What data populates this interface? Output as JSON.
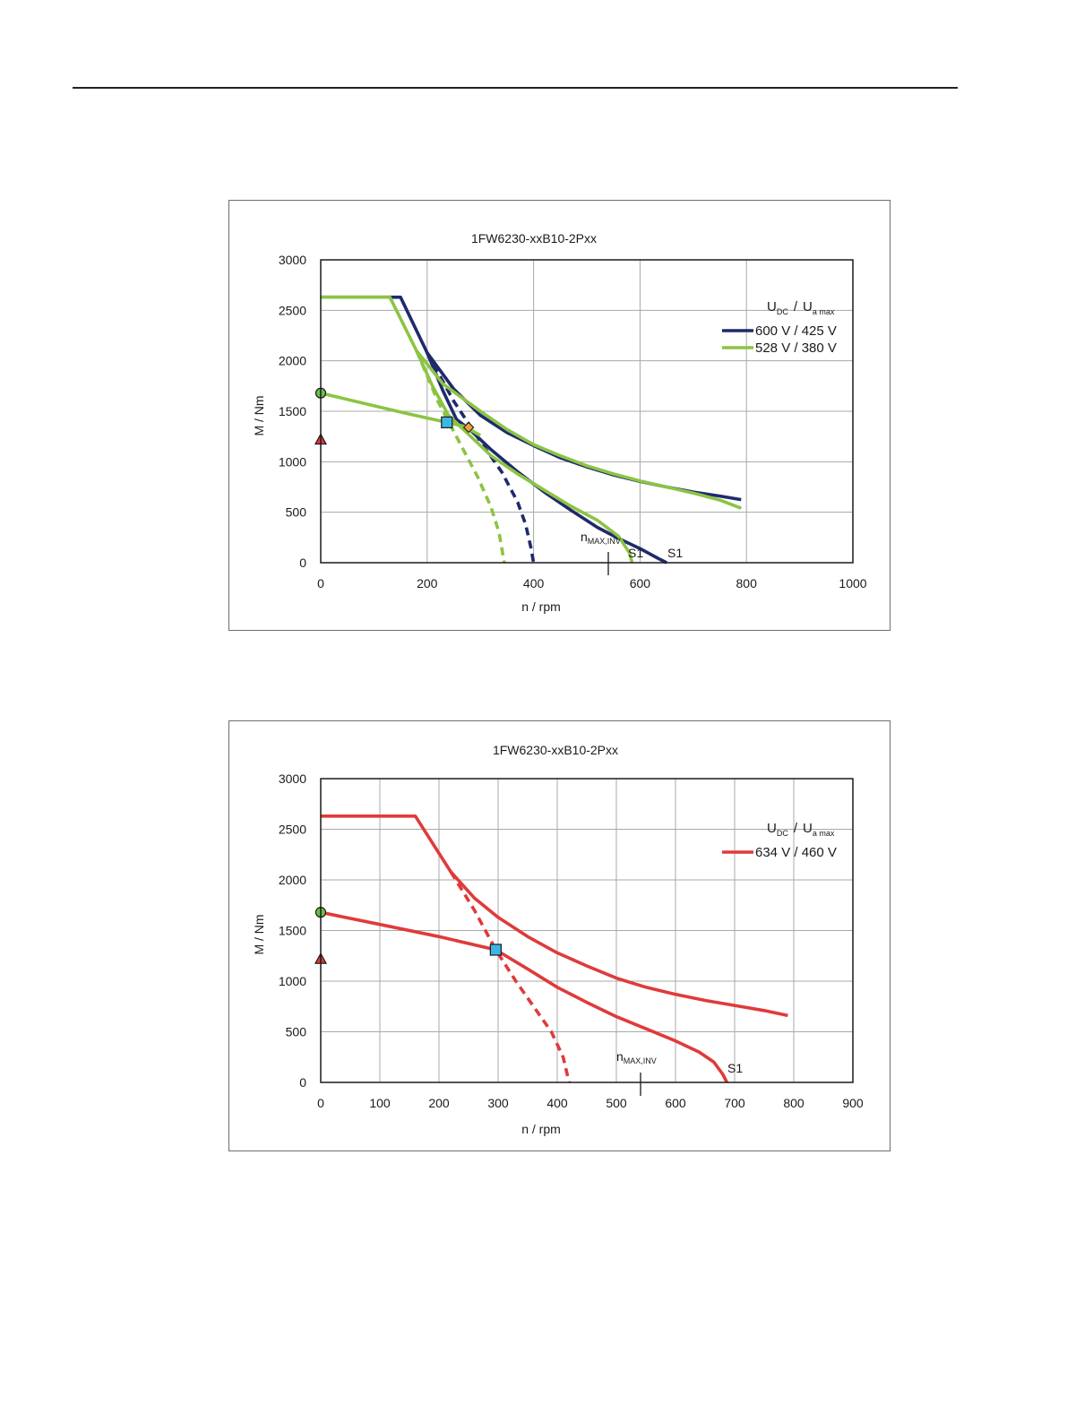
{
  "charts": [
    {
      "title": "1FW6230-xxB10-2Pxx",
      "xlabel": "n / rpm",
      "ylabel": "M / Nm",
      "legend": {
        "header": {
          "u1": "U",
          "u1_sub": "DC",
          "slash": "/",
          "u2": "U",
          "u2_sub": "a max"
        },
        "entries": [
          {
            "label": "600 V / 425 V",
            "color": "#1f2a6b"
          },
          {
            "label": "528 V / 380 V",
            "color": "#8cc443"
          }
        ]
      },
      "annotations": {
        "nmax_main": "n",
        "nmax_sub": "MAX,INV",
        "s1_a": "S1",
        "s1_b": "S1"
      }
    },
    {
      "title": "1FW6230-xxB10-2Pxx",
      "xlabel": "n / rpm",
      "ylabel": "M / Nm",
      "legend": {
        "header": {
          "u1": "U",
          "u1_sub": "DC",
          "slash": "/",
          "u2": "U",
          "u2_sub": "a max"
        },
        "entries": [
          {
            "label": "634 V / 460 V",
            "color": "#e03a3a"
          }
        ]
      },
      "annotations": {
        "nmax_main": "n",
        "nmax_sub": "MAX,INV",
        "s1_a": "S1"
      }
    }
  ],
  "chart_data": [
    {
      "type": "line",
      "title": "1FW6230-xxB10-2Pxx",
      "xlabel": "n / rpm",
      "ylabel": "M / Nm",
      "xlim": [
        0,
        1000
      ],
      "ylim": [
        0,
        3000
      ],
      "xticks": [
        0,
        200,
        400,
        600,
        800,
        1000
      ],
      "yticks": [
        0,
        500,
        1000,
        1500,
        2000,
        2500,
        3000
      ],
      "grid": true,
      "legend_position": "top-right",
      "nmax_inv": 540,
      "series": [
        {
          "name": "600 V / 425 V",
          "color": "#1f2a6b",
          "style": "solid",
          "points": [
            [
              0,
              2630
            ],
            [
              150,
              2630
            ],
            [
              200,
              2080
            ],
            [
              250,
              1720
            ],
            [
              300,
              1460
            ],
            [
              350,
              1290
            ],
            [
              400,
              1160
            ],
            [
              450,
              1040
            ],
            [
              500,
              950
            ],
            [
              550,
              870
            ],
            [
              600,
              805
            ],
            [
              650,
              750
            ],
            [
              700,
              700
            ],
            [
              750,
              660
            ],
            [
              790,
              625
            ]
          ]
        },
        {
          "name": "600 V / 425 V",
          "color": "#1f2a6b",
          "style": "solid",
          "points": [
            [
              200,
              2080
            ],
            [
              230,
              1700
            ],
            [
              255,
              1420
            ],
            [
              280,
              1320
            ],
            [
              320,
              1120
            ],
            [
              370,
              900
            ],
            [
              420,
              700
            ],
            [
              470,
              520
            ],
            [
              520,
              350
            ],
            [
              560,
              240
            ],
            [
              600,
              140
            ],
            [
              635,
              40
            ],
            [
              650,
              0
            ]
          ]
        },
        {
          "name": "600 V / 425 V",
          "color": "#1f2a6b",
          "style": "dashed",
          "points": [
            [
              200,
              2080
            ],
            [
              250,
              1600
            ],
            [
              300,
              1200
            ],
            [
              340,
              900
            ],
            [
              370,
              600
            ],
            [
              385,
              380
            ],
            [
              395,
              150
            ],
            [
              400,
              0
            ]
          ]
        },
        {
          "name": "528 V / 380 V",
          "color": "#8cc443",
          "style": "solid",
          "points": [
            [
              0,
              2630
            ],
            [
              130,
              2630
            ],
            [
              180,
              2100
            ],
            [
              230,
              1770
            ],
            [
              300,
              1500
            ],
            [
              350,
              1320
            ],
            [
              400,
              1170
            ],
            [
              450,
              1060
            ],
            [
              500,
              960
            ],
            [
              550,
              880
            ],
            [
              600,
              810
            ],
            [
              650,
              750
            ],
            [
              700,
              690
            ],
            [
              750,
              620
            ],
            [
              790,
              540
            ]
          ]
        },
        {
          "name": "528 V / 380 V",
          "color": "#8cc443",
          "style": "solid",
          "points": [
            [
              180,
              2100
            ],
            [
              210,
              1750
            ],
            [
              240,
              1460
            ],
            [
              280,
              1260
            ],
            [
              320,
              1060
            ],
            [
              370,
              880
            ],
            [
              420,
              720
            ],
            [
              470,
              560
            ],
            [
              520,
              420
            ],
            [
              560,
              260
            ],
            [
              580,
              100
            ],
            [
              585,
              0
            ]
          ]
        },
        {
          "name": "528 V / 380 V",
          "color": "#8cc443",
          "style": "dashed",
          "points": [
            [
              180,
              2100
            ],
            [
              220,
              1600
            ],
            [
              260,
              1200
            ],
            [
              295,
              850
            ],
            [
              320,
              550
            ],
            [
              335,
              300
            ],
            [
              345,
              0
            ]
          ]
        },
        {
          "name": "528 V / 380 V",
          "color": "#8cc443",
          "style": "solid",
          "points": [
            [
              0,
              1680
            ],
            [
              80,
              1580
            ],
            [
              160,
              1480
            ],
            [
              237,
              1390
            ],
            [
              270,
              1350
            ],
            [
              300,
              1260
            ]
          ]
        }
      ],
      "markers": [
        {
          "shape": "circle",
          "x": 0,
          "y": 1680,
          "color": "#6cbf45"
        },
        {
          "shape": "triangle",
          "x": 0,
          "y": 1220,
          "color": "#e03a3a"
        },
        {
          "shape": "square",
          "x": 237,
          "y": 1390,
          "color": "#3db6e6"
        },
        {
          "shape": "diamond",
          "x": 278,
          "y": 1340,
          "color": "#f0a040"
        }
      ]
    },
    {
      "type": "line",
      "title": "1FW6230-xxB10-2Pxx",
      "xlabel": "n / rpm",
      "ylabel": "M / Nm",
      "xlim": [
        0,
        900
      ],
      "ylim": [
        0,
        3000
      ],
      "xticks": [
        0,
        100,
        200,
        300,
        400,
        500,
        600,
        700,
        800,
        900
      ],
      "yticks": [
        0,
        500,
        1000,
        1500,
        2000,
        2500,
        3000
      ],
      "grid": true,
      "legend_position": "top-right",
      "nmax_inv": 540,
      "series": [
        {
          "name": "634 V / 460 V",
          "color": "#e03a3a",
          "style": "solid",
          "points": [
            [
              0,
              2630
            ],
            [
              160,
              2630
            ],
            [
              220,
              2080
            ],
            [
              260,
              1820
            ],
            [
              300,
              1630
            ],
            [
              350,
              1440
            ],
            [
              400,
              1280
            ],
            [
              450,
              1150
            ],
            [
              500,
              1030
            ],
            [
              550,
              940
            ],
            [
              600,
              870
            ],
            [
              650,
              810
            ],
            [
              700,
              760
            ],
            [
              750,
              710
            ],
            [
              790,
              660
            ]
          ]
        },
        {
          "name": "634 V / 460 V",
          "color": "#e03a3a",
          "style": "solid",
          "points": [
            [
              0,
              1680
            ],
            [
              100,
              1560
            ],
            [
              200,
              1440
            ],
            [
              296,
              1310
            ],
            [
              350,
              1120
            ],
            [
              400,
              940
            ],
            [
              450,
              790
            ],
            [
              500,
              650
            ],
            [
              550,
              530
            ],
            [
              600,
              410
            ],
            [
              640,
              300
            ],
            [
              665,
              200
            ],
            [
              680,
              80
            ],
            [
              687,
              0
            ]
          ]
        },
        {
          "name": "634 V / 460 V",
          "color": "#e03a3a",
          "style": "dashed",
          "points": [
            [
              220,
              2080
            ],
            [
              260,
              1700
            ],
            [
              296,
              1310
            ],
            [
              330,
              1000
            ],
            [
              360,
              750
            ],
            [
              390,
              500
            ],
            [
              410,
              250
            ],
            [
              420,
              0
            ]
          ]
        }
      ],
      "markers": [
        {
          "shape": "circle",
          "x": 0,
          "y": 1680,
          "color": "#6cbf45"
        },
        {
          "shape": "triangle",
          "x": 0,
          "y": 1220,
          "color": "#e03a3a"
        },
        {
          "shape": "square",
          "x": 296,
          "y": 1310,
          "color": "#3db6e6"
        }
      ]
    }
  ]
}
